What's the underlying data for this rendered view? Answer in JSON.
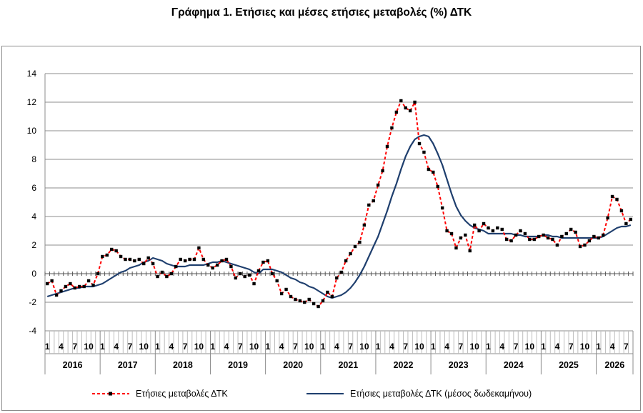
{
  "chart_data": {
    "type": "line",
    "title": "Γράφημα 1. Ετήσιες και μέσες ετήσιες μεταβολές (%) ΔΤΚ",
    "ylim": [
      -4,
      14
    ],
    "yticks": [
      "-4",
      "-2",
      "0",
      "2",
      "4",
      "6",
      "8",
      "10",
      "12",
      "14"
    ],
    "years": [
      "2016",
      "2017",
      "2018",
      "2019",
      "2020",
      "2021",
      "2022",
      "2023",
      "2024",
      "2025",
      "2026"
    ],
    "month_ticks": [
      "1",
      "4",
      "7",
      "10"
    ],
    "last_year_month_ticks": [
      "1",
      "4",
      "7"
    ],
    "grid": true,
    "legend_position": "bottom",
    "series": [
      {
        "name": "Ετήσιες μεταβολές ΔΤΚ",
        "color": "#ff0000",
        "marker_color": "#000000",
        "style": "dashed-markers",
        "values": [
          -0.7,
          -0.5,
          -1.5,
          -1.2,
          -0.9,
          -0.7,
          -1.0,
          -0.9,
          -0.9,
          -0.5,
          -0.8,
          0.0,
          1.2,
          1.3,
          1.7,
          1.6,
          1.2,
          1.0,
          1.0,
          0.9,
          1.0,
          0.7,
          1.1,
          0.7,
          -0.2,
          0.1,
          -0.2,
          0.0,
          0.5,
          1.0,
          0.9,
          1.0,
          1.0,
          1.8,
          1.0,
          0.6,
          0.4,
          0.6,
          0.9,
          1.0,
          0.5,
          -0.3,
          0.0,
          -0.2,
          -0.1,
          -0.7,
          0.2,
          0.8,
          0.9,
          0.0,
          -0.5,
          -1.4,
          -1.1,
          -1.6,
          -1.8,
          -1.9,
          -2.0,
          -1.8,
          -2.1,
          -2.3,
          -1.9,
          -1.3,
          -1.6,
          -0.3,
          0.1,
          0.9,
          1.4,
          1.9,
          2.2,
          3.4,
          4.8,
          5.1,
          6.2,
          7.2,
          8.9,
          10.2,
          11.3,
          12.1,
          11.6,
          11.4,
          12.0,
          9.1,
          8.5,
          7.3,
          7.1,
          6.1,
          4.6,
          3.0,
          2.8,
          1.8,
          2.5,
          2.7,
          1.6,
          3.4,
          3.0,
          3.5,
          3.2,
          3.0,
          3.2,
          3.1,
          2.4,
          2.3,
          2.7,
          3.0,
          2.8,
          2.4,
          2.4,
          2.6,
          2.7,
          2.5,
          2.4,
          2.0,
          2.6,
          2.8,
          3.1,
          2.9,
          1.9,
          2.0,
          2.3,
          2.6,
          2.5,
          2.7,
          3.9,
          5.4,
          5.2,
          4.4,
          3.5,
          3.8
        ]
      },
      {
        "name": "Ετήσιες μεταβολές ΔΤΚ (μέσος δωδεκαμήνου)",
        "color": "#1f3f6e",
        "style": "solid",
        "values": [
          -1.6,
          -1.5,
          -1.4,
          -1.3,
          -1.2,
          -1.1,
          -1.0,
          -1.0,
          -0.9,
          -0.9,
          -0.9,
          -0.8,
          -0.7,
          -0.5,
          -0.3,
          -0.1,
          0.1,
          0.2,
          0.4,
          0.5,
          0.6,
          0.8,
          0.9,
          1.1,
          1.0,
          0.9,
          0.7,
          0.6,
          0.5,
          0.5,
          0.5,
          0.6,
          0.6,
          0.6,
          0.6,
          0.7,
          0.8,
          0.8,
          0.9,
          0.8,
          0.7,
          0.6,
          0.5,
          0.4,
          0.3,
          0.1,
          0.0,
          0.3,
          0.3,
          0.3,
          0.2,
          0.1,
          -0.1,
          -0.3,
          -0.4,
          -0.6,
          -0.7,
          -0.9,
          -1.0,
          -1.2,
          -1.4,
          -1.6,
          -1.7,
          -1.6,
          -1.5,
          -1.3,
          -1.0,
          -0.6,
          -0.1,
          0.5,
          1.2,
          1.9,
          2.6,
          3.5,
          4.4,
          5.4,
          6.3,
          7.3,
          8.2,
          8.9,
          9.4,
          9.6,
          9.7,
          9.6,
          9.1,
          8.4,
          7.6,
          6.6,
          5.6,
          4.7,
          4.1,
          3.7,
          3.4,
          3.2,
          3.1,
          3.0,
          2.8,
          2.8,
          2.8,
          2.8,
          2.8,
          2.8,
          2.7,
          2.7,
          2.6,
          2.6,
          2.6,
          2.6,
          2.7,
          2.7,
          2.6,
          2.6,
          2.5,
          2.5,
          2.5,
          2.5,
          2.5,
          2.5,
          2.5,
          2.5,
          2.5,
          2.6,
          2.8,
          3.0,
          3.2,
          3.3,
          3.3,
          3.4
        ]
      }
    ]
  }
}
